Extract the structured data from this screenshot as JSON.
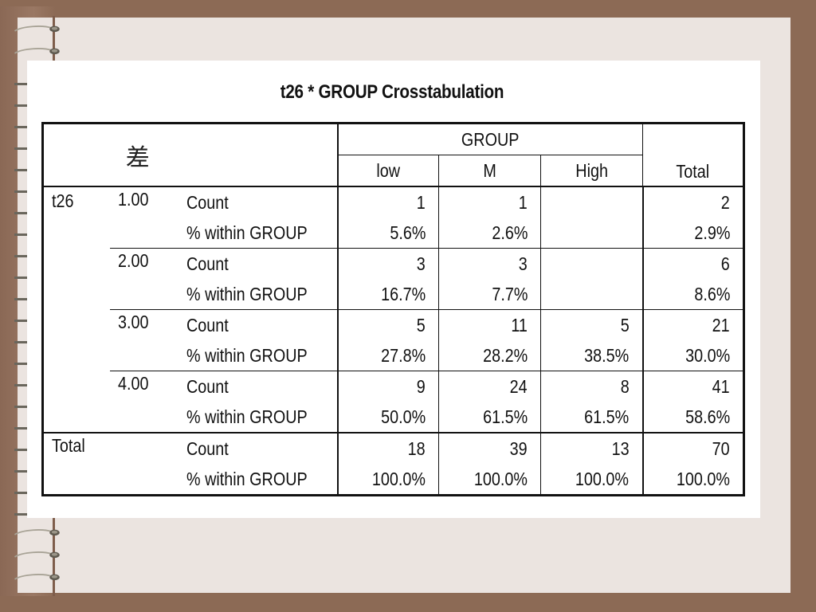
{
  "table": {
    "title": "t26 * GROUP Crosstabulation",
    "corner_label": "差",
    "group_header": "GROUP",
    "total_header": "Total",
    "columns": [
      "low",
      "M",
      "High"
    ],
    "row_var": "t26",
    "stat_labels": [
      "Count",
      "% within GROUP"
    ],
    "rows": [
      {
        "level": "1.00",
        "count": [
          "1",
          "1",
          "",
          "2"
        ],
        "pct": [
          "5.6%",
          "2.6%",
          "",
          "2.9%"
        ]
      },
      {
        "level": "2.00",
        "count": [
          "3",
          "3",
          "",
          "6"
        ],
        "pct": [
          "16.7%",
          "7.7%",
          "",
          "8.6%"
        ]
      },
      {
        "level": "3.00",
        "count": [
          "5",
          "11",
          "5",
          "21"
        ],
        "pct": [
          "27.8%",
          "28.2%",
          "38.5%",
          "30.0%"
        ]
      },
      {
        "level": "4.00",
        "count": [
          "9",
          "24",
          "8",
          "41"
        ],
        "pct": [
          "50.0%",
          "61.5%",
          "61.5%",
          "58.6%"
        ]
      }
    ],
    "total_row": {
      "label": "Total",
      "count": [
        "18",
        "39",
        "13",
        "70"
      ],
      "pct": [
        "100.0%",
        "100.0%",
        "100.0%",
        "100.0%"
      ]
    }
  },
  "colors": {
    "outer_background": "#8c6a55",
    "page": "#ebe4e0",
    "card": "#ffffff",
    "rings": "#9a9486"
  }
}
